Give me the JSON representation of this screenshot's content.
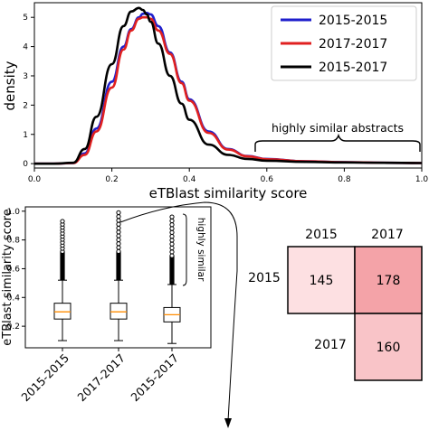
{
  "chart_data": [
    {
      "type": "line",
      "xlabel": "eTBlast similarity score",
      "ylabel": "density",
      "xlim": [
        0.0,
        1.0
      ],
      "ylim": [
        -0.15,
        5.5
      ],
      "xticks": [
        "0.0",
        "0.2",
        "0.4",
        "0.6",
        "0.8",
        "1.0"
      ],
      "yticks": [
        "0",
        "1",
        "2",
        "3",
        "4",
        "5"
      ],
      "legend_position": "top-right",
      "grid": false,
      "annotation": "highly similar abstracts",
      "x": [
        0.0,
        0.05,
        0.1,
        0.13,
        0.16,
        0.2,
        0.23,
        0.25,
        0.27,
        0.28,
        0.29,
        0.3,
        0.32,
        0.35,
        0.38,
        0.4,
        0.45,
        0.5,
        0.55,
        0.6,
        0.7,
        0.8,
        0.9,
        1.0
      ],
      "series": [
        {
          "name": "2015-2015",
          "color": "#1f1fcc",
          "values": [
            0,
            0,
            0.02,
            0.35,
            1.2,
            2.8,
            4.0,
            4.6,
            5.0,
            5.12,
            5.15,
            5.1,
            4.7,
            3.8,
            2.8,
            2.2,
            1.1,
            0.5,
            0.26,
            0.16,
            0.08,
            0.05,
            0.03,
            0.02
          ]
        },
        {
          "name": "2017-2017",
          "color": "#e02020",
          "values": [
            0,
            0,
            0.02,
            0.3,
            1.1,
            2.6,
            3.9,
            4.55,
            4.95,
            5.0,
            5.0,
            4.95,
            4.55,
            3.75,
            2.75,
            2.15,
            1.05,
            0.48,
            0.25,
            0.15,
            0.08,
            0.05,
            0.03,
            0.02
          ]
        },
        {
          "name": "2015-2017",
          "color": "#000000",
          "values": [
            0,
            0,
            0.03,
            0.5,
            1.6,
            3.4,
            4.7,
            5.2,
            5.32,
            5.25,
            5.1,
            4.85,
            4.1,
            3.0,
            2.05,
            1.5,
            0.65,
            0.3,
            0.16,
            0.1,
            0.06,
            0.04,
            0.03,
            0.02
          ]
        }
      ]
    },
    {
      "type": "box",
      "ylabel": "eTBlast similarity score",
      "ylim": [
        0.05,
        1.03
      ],
      "yticks": [
        "0.2",
        "0.4",
        "0.6",
        "0.8",
        "1.0"
      ],
      "categories": [
        "2015-2015",
        "2017-2017",
        "2015-2017"
      ],
      "annotation": "highly similar",
      "boxes": [
        {
          "whisker_low": 0.1,
          "q1": 0.25,
          "median": 0.3,
          "q3": 0.36,
          "whisker_high": 0.52,
          "outliers_max": 0.93
        },
        {
          "whisker_low": 0.1,
          "q1": 0.25,
          "median": 0.3,
          "q3": 0.36,
          "whisker_high": 0.52,
          "outliers_max": 0.99
        },
        {
          "whisker_low": 0.08,
          "q1": 0.23,
          "median": 0.28,
          "q3": 0.33,
          "whisker_high": 0.49,
          "outliers_max": 0.96
        }
      ],
      "box_color": "#000000",
      "median_color": "#ff8c00"
    },
    {
      "type": "table",
      "columns": [
        "2015",
        "2017"
      ],
      "rows": [
        "2015",
        "2017"
      ],
      "cells": [
        {
          "row": "2015",
          "col": "2015",
          "value": "145"
        },
        {
          "row": "2015",
          "col": "2017",
          "value": "178"
        },
        {
          "row": "2017",
          "col": "2017",
          "value": "160"
        }
      ],
      "colors": {
        "145": "#fde0e2",
        "178": "#f4a3a8",
        "160": "#f9c4c8"
      }
    }
  ]
}
